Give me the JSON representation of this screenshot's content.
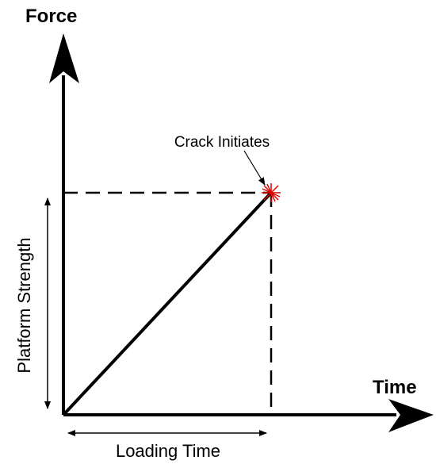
{
  "labels": {
    "y_axis": "Force",
    "x_axis": "Time"
  },
  "annotations": {
    "crack": "Crack Initiates",
    "strength": "Platform Strength",
    "loading_time": "Loading Time"
  }
}
